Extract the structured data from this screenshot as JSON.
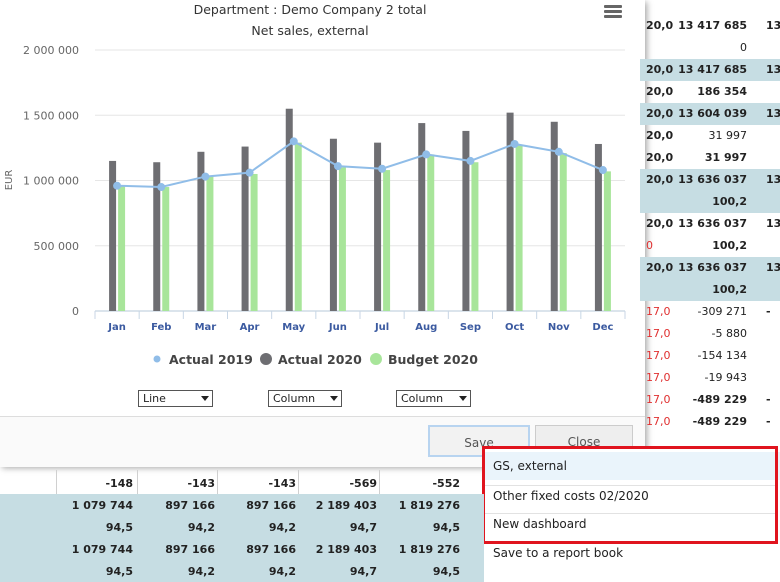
{
  "dialog": {
    "title": "Department : Demo Company 2 total",
    "subtitle": "Net sales, external",
    "menu_icon": "hamburger-menu-icon",
    "series_selects": [
      "Line",
      "Column",
      "Column"
    ],
    "save_label": "Save",
    "close_label": "Close"
  },
  "chart_data": {
    "type": "bar",
    "categories": [
      "Jan",
      "Feb",
      "Mar",
      "Apr",
      "May",
      "Jun",
      "Jul",
      "Aug",
      "Sep",
      "Oct",
      "Nov",
      "Dec"
    ],
    "ylabel": "EUR",
    "ylim": [
      0,
      2000000
    ],
    "yticks": [
      "0",
      "500 000",
      "1 000 000",
      "1 500 000",
      "2 000 000"
    ],
    "legend_position": "bottom",
    "series": [
      {
        "name": "Actual 2019",
        "kind": "line",
        "color": "#90bde8",
        "values": [
          960000,
          950000,
          1030000,
          1060000,
          1300000,
          1110000,
          1090000,
          1200000,
          1150000,
          1280000,
          1220000,
          1080000
        ]
      },
      {
        "name": "Actual 2020",
        "kind": "column",
        "color": "#6e6e72",
        "values": [
          1150000,
          1140000,
          1220000,
          1260000,
          1550000,
          1320000,
          1290000,
          1440000,
          1380000,
          1520000,
          1450000,
          1280000
        ]
      },
      {
        "name": "Budget 2020",
        "kind": "column",
        "color": "#a8e59a",
        "values": [
          960000,
          950000,
          1030000,
          1050000,
          1290000,
          1100000,
          1080000,
          1200000,
          1140000,
          1270000,
          1210000,
          1070000
        ]
      }
    ]
  },
  "right_table": {
    "rows": [
      {
        "c1": "20,0",
        "c2": "13 417 685",
        "c3": "13",
        "band": false,
        "bold2": true
      },
      {
        "c1": "",
        "c2": "0",
        "c3": "",
        "band": false,
        "bold2": false
      },
      {
        "c1": "20,0",
        "c2": "13 417 685",
        "c3": "13",
        "band": true,
        "bold2": true
      },
      {
        "c1": "20,0",
        "c2": "186 354",
        "c3": "",
        "band": false,
        "bold2": true
      },
      {
        "c1": "20,0",
        "c2": "13 604 039",
        "c3": "13",
        "band": true,
        "bold2": true
      },
      {
        "c1": "20,0",
        "c2": "31 997",
        "c3": "",
        "band": false,
        "bold2": false
      },
      {
        "c1": "20,0",
        "c2": "31 997",
        "c3": "",
        "band": false,
        "bold2": true
      },
      {
        "c1": "20,0",
        "c2": "13 636 037",
        "c3": "13",
        "band": true,
        "bold2": true
      },
      {
        "c1": "",
        "c2": "100,2",
        "c3": "",
        "band": true,
        "bold2": true
      },
      {
        "c1": "20,0",
        "c2": "13 636 037",
        "c3": "13",
        "band": false,
        "bold2": true
      },
      {
        "c1": "0",
        "c2": "100,2",
        "c3": "",
        "band": false,
        "bold2": true,
        "red1": true
      },
      {
        "c1": "20,0",
        "c2": "13 636 037",
        "c3": "13",
        "band": true,
        "bold2": true
      },
      {
        "c1": "",
        "c2": "100,2",
        "c3": "",
        "band": true,
        "bold2": true
      },
      {
        "c1": "17,0",
        "c2": "-309 271",
        "c3": "-",
        "band": false,
        "bold2": false,
        "red1": true
      },
      {
        "c1": "17,0",
        "c2": "-5 880",
        "c3": "",
        "band": false,
        "bold2": false,
        "red1": true
      },
      {
        "c1": "17,0",
        "c2": "-154 134",
        "c3": "",
        "band": false,
        "bold2": false,
        "red1": true
      },
      {
        "c1": "17,0",
        "c2": "-19 943",
        "c3": "",
        "band": false,
        "bold2": false,
        "red1": true
      },
      {
        "c1": "17,0",
        "c2": "-489 229",
        "c3": "-",
        "band": false,
        "bold2": true,
        "red1": true
      },
      {
        "c1": "17,0",
        "c2": "-489 229",
        "c3": "-",
        "band": false,
        "bold2": true,
        "red1": true
      }
    ]
  },
  "bottom_table": {
    "rows": [
      {
        "cells": [
          "-148",
          "-143",
          "-143",
          "-569",
          "-552"
        ],
        "band": false
      },
      {
        "cells": [
          "1 079 744",
          "897 166",
          "897 166",
          "2 189 403",
          "1 819 276"
        ],
        "band": true
      },
      {
        "cells": [
          "94,5",
          "94,2",
          "94,2",
          "94,7",
          "94,5"
        ],
        "band": true
      },
      {
        "cells": [
          "1 079 744",
          "897 166",
          "897 166",
          "2 189 403",
          "1 819 276"
        ],
        "band": true
      },
      {
        "cells": [
          "94,5",
          "94,2",
          "94,2",
          "94,7",
          "94,5"
        ],
        "band": true
      }
    ]
  },
  "popup_menu": {
    "items": [
      "GS, external",
      "Other fixed costs 02/2020",
      "New dashboard",
      "Save to a report book"
    ]
  }
}
